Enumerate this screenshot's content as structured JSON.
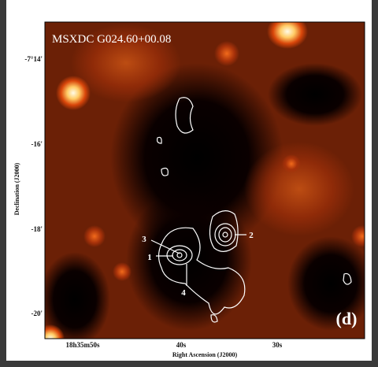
{
  "figure": {
    "title": "MSXDC G024.60+00.08",
    "panel_label": "(d)",
    "y_axis": {
      "label": "Declination (J2000)",
      "ticks": [
        "-7°14'",
        "-16'",
        "-18'",
        "-20'"
      ]
    },
    "x_axis": {
      "label": "Right Ascension (J2000)",
      "ticks": [
        "18h35m50s",
        "40s",
        "30s"
      ]
    },
    "sources": [
      "1",
      "2",
      "3",
      "4"
    ]
  }
}
